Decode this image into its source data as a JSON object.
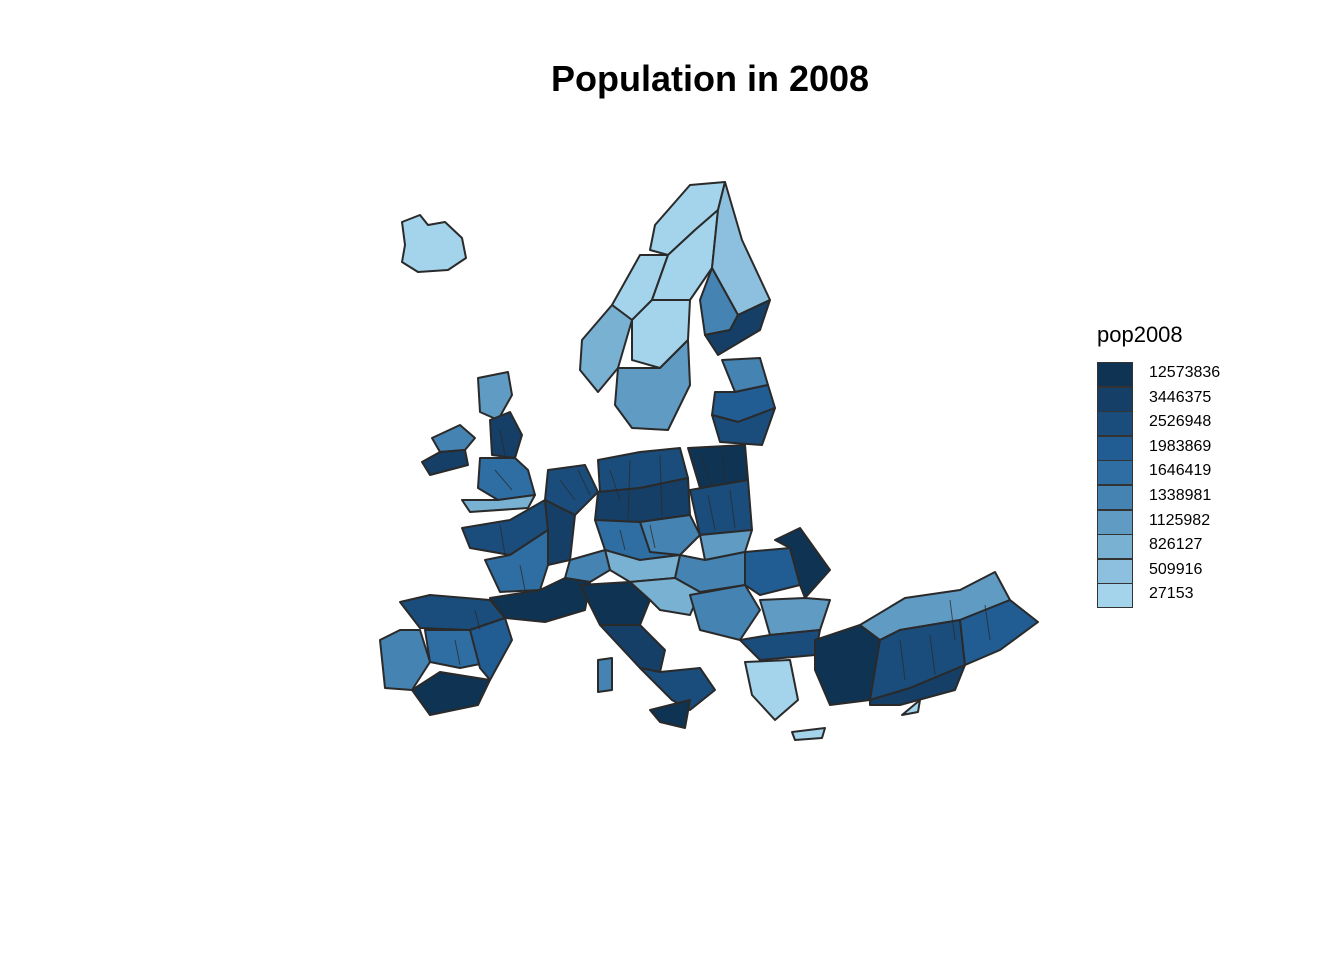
{
  "title": "Population in 2008",
  "legend": {
    "title": "pop2008",
    "classes": [
      {
        "label": "12573836",
        "color": "#0f3352"
      },
      {
        "label": "3446375",
        "color": "#153f66"
      },
      {
        "label": "2526948",
        "color": "#1b4d7c"
      },
      {
        "label": "1983869",
        "color": "#215c92"
      },
      {
        "label": "1646419",
        "color": "#2f6ea3"
      },
      {
        "label": "1338981",
        "color": "#4583b2"
      },
      {
        "label": "1125982",
        "color": "#5f9bc3"
      },
      {
        "label": "826127",
        "color": "#79b1d3"
      },
      {
        "label": "509916",
        "color": "#8dc0de"
      },
      {
        "label": "27153",
        "color": "#a3d4ec"
      }
    ]
  },
  "map": {
    "stroke_color": "#2a2a2a",
    "regions": "NUTS regions of Europe shaded by pop2008 class"
  }
}
